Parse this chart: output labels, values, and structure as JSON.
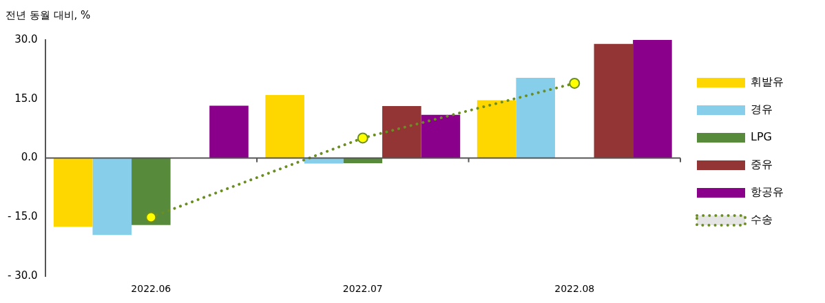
{
  "chart_data": {
    "type": "bar",
    "title": "전년 동월 대비, %",
    "categories": [
      "2022.06",
      "2022.07",
      "2022.08"
    ],
    "series": [
      {
        "name": "휘발유",
        "color": "#ffd700",
        "values": [
          -17.4,
          16.0,
          14.7
        ]
      },
      {
        "name": "경유",
        "color": "#87ceeb",
        "values": [
          -19.5,
          -1.4,
          20.4
        ]
      },
      {
        "name": "LPG",
        "color": "#578a3a",
        "values": [
          -17.0,
          -1.3,
          null
        ]
      },
      {
        "name": "중유",
        "color": "#933535",
        "values": [
          null,
          13.2,
          29.0
        ]
      },
      {
        "name": "항공유",
        "color": "#8b008b",
        "values": [
          13.3,
          11.0,
          30.0
        ]
      },
      {
        "name": "수송",
        "type": "line",
        "color": "#6b8e23",
        "values": [
          -15.0,
          5.1,
          19.0
        ],
        "marker": "circle",
        "line_style": "dotted"
      }
    ],
    "ylim": [
      -30,
      30
    ],
    "yticks": [
      {
        "value": -30,
        "label": "- 30.0"
      },
      {
        "value": -15,
        "label": "- 15.0"
      },
      {
        "value": 0,
        "label": "0.0"
      },
      {
        "value": 15,
        "label": "15.0"
      },
      {
        "value": 30,
        "label": "30.0"
      }
    ],
    "legend": "right"
  }
}
